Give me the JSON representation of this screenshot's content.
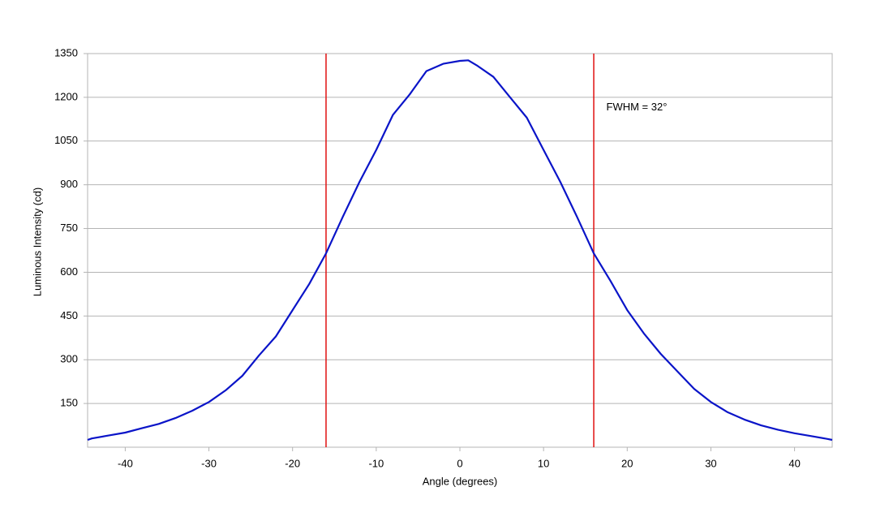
{
  "chart_data": {
    "type": "line",
    "x_label": "Angle (degrees)",
    "y_label": "Luminous Intensity (cd)",
    "x": [
      -44.5,
      -44,
      -42,
      -40,
      -38,
      -36,
      -34,
      -32,
      -30,
      -28,
      -26,
      -24,
      -22,
      -20,
      -18,
      -16,
      -14,
      -12,
      -10,
      -8,
      -6,
      -4,
      -2,
      0,
      1,
      2,
      4,
      6,
      8,
      10,
      12,
      14,
      16,
      18,
      20,
      22,
      24,
      26,
      28,
      30,
      32,
      34,
      36,
      38,
      40,
      42,
      44,
      44.5
    ],
    "series": [
      {
        "color": "#0a14c8",
        "values": [
          25,
          30,
          40,
          50,
          65,
          80,
          100,
          125,
          155,
          195,
          245,
          315,
          380,
          470,
          560,
          665,
          790,
          910,
          1020,
          1140,
          1210,
          1290,
          1315,
          1325,
          1327,
          1310,
          1270,
          1200,
          1130,
          1020,
          910,
          790,
          665,
          570,
          470,
          390,
          320,
          260,
          200,
          155,
          120,
          95,
          75,
          60,
          48,
          38,
          28,
          25
        ]
      }
    ],
    "xlim": [
      -44.5,
      44.5
    ],
    "xticks": [
      -40,
      -30,
      -20,
      -10,
      0,
      10,
      20,
      30,
      40
    ],
    "ylim": [
      0,
      1350
    ],
    "yticks": [
      150,
      300,
      450,
      600,
      750,
      900,
      1050,
      1200,
      1350
    ],
    "grid": true,
    "vlines": [
      {
        "x": -16,
        "color": "#e01010"
      },
      {
        "x": 16,
        "color": "#e01010"
      }
    ],
    "annotations": [
      {
        "text": "FWHM = 32°",
        "x": 17.5,
        "y": 1165
      }
    ]
  }
}
